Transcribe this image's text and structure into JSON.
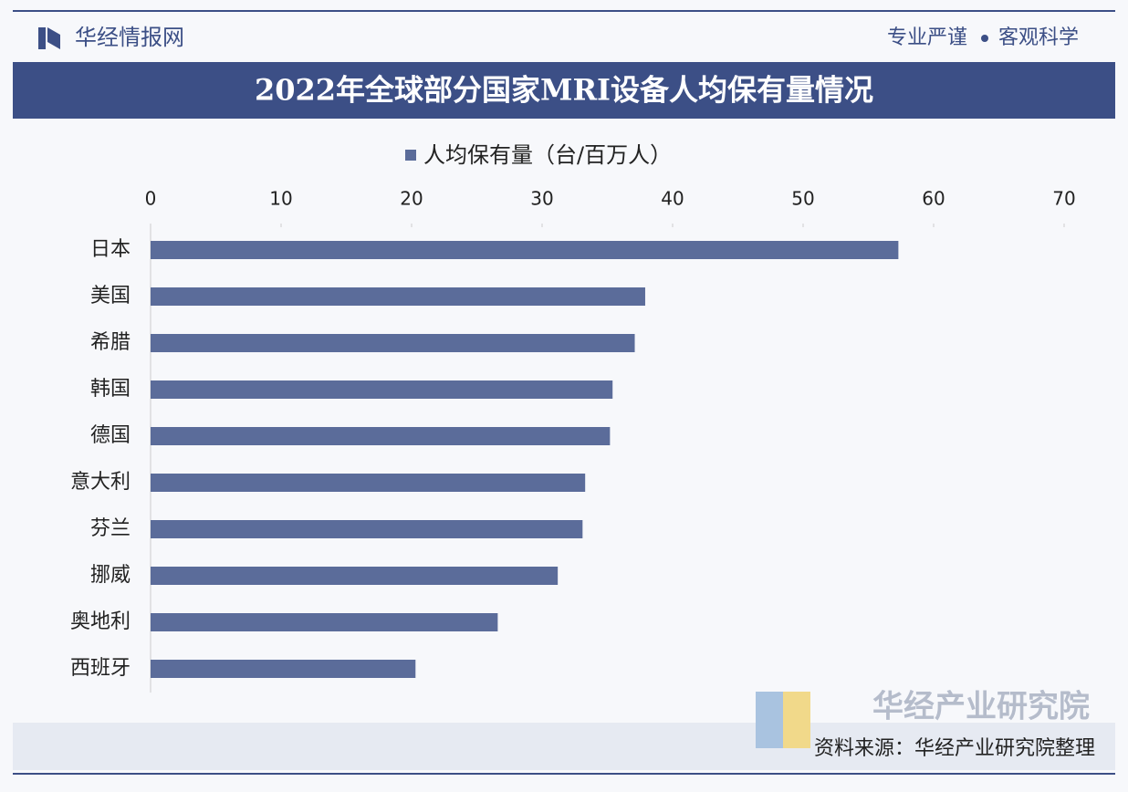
{
  "header": {
    "brand": "华经情报网",
    "slogan_left": "专业严谨",
    "slogan_right": "客观科学"
  },
  "chart_data": {
    "type": "hbar",
    "title": "2022年全球部分国家MRI设备人均保有量情况",
    "categories": [
      "日本",
      "美国",
      "希腊",
      "韩国",
      "德国",
      "意大利",
      "芬兰",
      "挪威",
      "奥地利",
      "西班牙"
    ],
    "series": [
      {
        "name": "人均保有量（台/百万人）",
        "color": "#5b6c9a",
        "values": [
          57.3,
          37.9,
          37.1,
          35.4,
          35.2,
          33.3,
          33.1,
          31.2,
          26.6,
          20.3
        ]
      }
    ],
    "xlim": [
      0,
      70
    ],
    "xticks": [
      0,
      10,
      20,
      30,
      40,
      50,
      60,
      70
    ],
    "grid": false,
    "legend": "top"
  },
  "footer": {
    "source": "资料来源：华经产业研究院整理",
    "watermark": "华经产业研究院"
  }
}
